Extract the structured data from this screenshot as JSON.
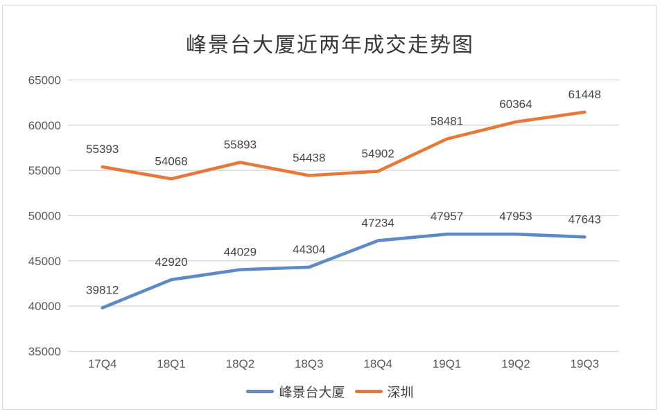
{
  "chart_data": {
    "type": "line",
    "title": "峰景台大厦近两年成交走势图",
    "categories": [
      "17Q4",
      "18Q1",
      "18Q2",
      "18Q3",
      "18Q4",
      "19Q1",
      "19Q2",
      "19Q3"
    ],
    "series": [
      {
        "name": "峰景台大厦",
        "color": "#5b8ac4",
        "values": [
          39812,
          42920,
          44029,
          44304,
          47234,
          47957,
          47953,
          47643
        ]
      },
      {
        "name": "深圳",
        "color": "#e5793b",
        "values": [
          55393,
          54068,
          55893,
          54438,
          54902,
          58481,
          60364,
          61448
        ]
      }
    ],
    "ylim": [
      35000,
      65000
    ],
    "ytick_step": 5000,
    "ytick_labels": [
      "35000",
      "40000",
      "45000",
      "50000",
      "55000",
      "60000",
      "65000"
    ],
    "grid": true,
    "data_labels": true,
    "legend_position": "bottom",
    "colors": {
      "gridline": "#d9d9d9",
      "axis_label": "#595959",
      "data_label": "#454545",
      "title": "#383838",
      "frame_border": "#d8d8d8"
    }
  }
}
